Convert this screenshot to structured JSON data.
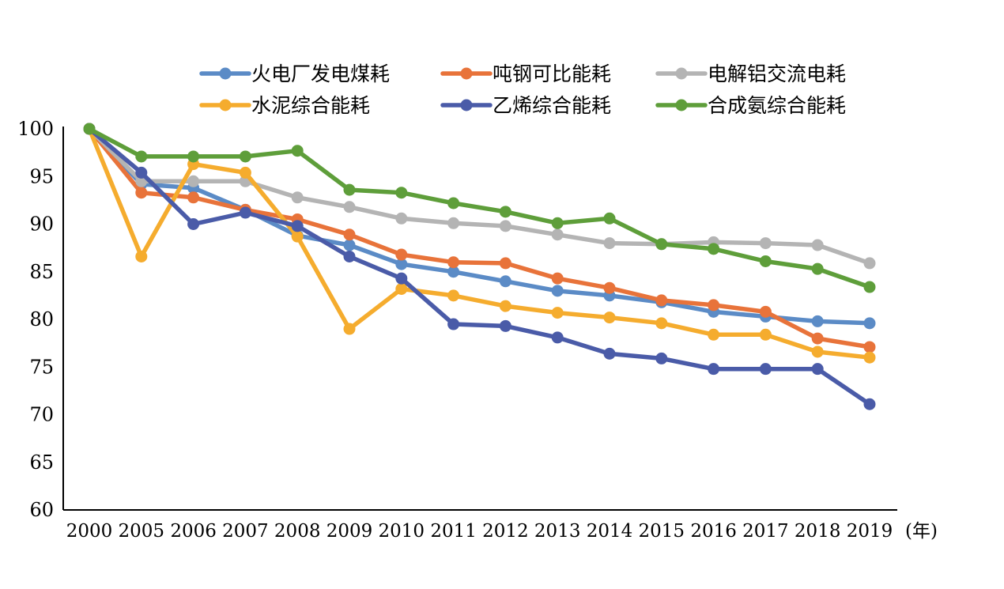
{
  "chart_data": {
    "type": "line",
    "title": "",
    "xlabel": "(年)",
    "ylabel": "",
    "ylim": [
      60,
      100
    ],
    "yticks": [
      60,
      65,
      70,
      75,
      80,
      85,
      90,
      95,
      100
    ],
    "categories": [
      "2000",
      "2005",
      "2006",
      "2007",
      "2008",
      "2009",
      "2010",
      "2011",
      "2012",
      "2013",
      "2014",
      "2015",
      "2016",
      "2017",
      "2018",
      "2019"
    ],
    "grid": false,
    "legend_position": "top",
    "series": [
      {
        "name": "火电厂发电煤耗",
        "color": "#5B8BC6",
        "values": [
          100,
          94.2,
          93.8,
          91.5,
          88.8,
          87.8,
          85.8,
          85.0,
          84.0,
          83.0,
          82.5,
          81.8,
          80.8,
          80.3,
          79.8,
          79.6
        ]
      },
      {
        "name": "吨钢可比能耗",
        "color": "#E8733A",
        "values": [
          100,
          93.3,
          92.8,
          91.5,
          90.5,
          88.9,
          86.8,
          86.0,
          85.9,
          84.3,
          83.3,
          82.0,
          81.5,
          80.8,
          78.0,
          77.1
        ]
      },
      {
        "name": "电解铝交流电耗",
        "color": "#B4B4B4",
        "values": [
          100,
          94.5,
          94.5,
          94.5,
          92.8,
          91.8,
          90.6,
          90.1,
          89.8,
          88.9,
          88.0,
          87.9,
          88.1,
          88.0,
          87.8,
          85.9
        ]
      },
      {
        "name": "水泥综合能耗",
        "color": "#F5AC2E",
        "values": [
          100,
          86.6,
          96.3,
          95.4,
          88.7,
          79.0,
          83.2,
          82.5,
          81.4,
          80.7,
          80.2,
          79.6,
          78.4,
          78.4,
          76.6,
          76.0
        ]
      },
      {
        "name": "乙烯综合能耗",
        "color": "#4A5BA8",
        "values": [
          100,
          95.4,
          90.0,
          91.2,
          89.8,
          86.6,
          84.3,
          79.5,
          79.3,
          78.1,
          76.4,
          75.9,
          74.8,
          74.8,
          74.8,
          71.1
        ]
      },
      {
        "name": "合成氨综合能耗",
        "color": "#5E9E3A",
        "values": [
          100,
          97.1,
          97.1,
          97.1,
          97.7,
          93.6,
          93.3,
          92.2,
          91.3,
          90.1,
          90.6,
          87.9,
          87.4,
          86.1,
          85.3,
          83.4
        ]
      }
    ]
  }
}
